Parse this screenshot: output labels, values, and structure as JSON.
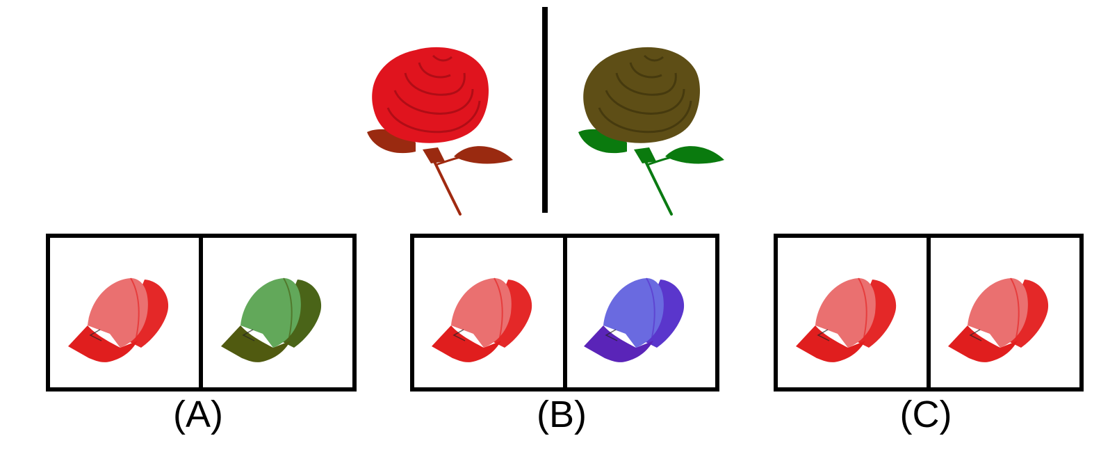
{
  "example": {
    "left_image": {
      "icon": "rose-icon",
      "petal_color": "#e0141e",
      "petal_shade": "#b00d16",
      "leaf_color": "#9a2a10",
      "stem_color": "#a02a10"
    },
    "right_image": {
      "icon": "rose-icon",
      "petal_color": "#5e4e16",
      "petal_shade": "#463a0e",
      "leaf_color": "#0a7a0e",
      "stem_color": "#0a7a12"
    }
  },
  "options": [
    {
      "label": "(A)",
      "left_cap": {
        "icon": "baseball-cap-icon",
        "crown_color": "#e42828",
        "panel_color": "#ea7070",
        "brim_color": "#e01e1e"
      },
      "right_cap": {
        "icon": "baseball-cap-icon",
        "crown_color": "#4a6418",
        "panel_color": "#62a85a",
        "brim_color": "#505a10"
      }
    },
    {
      "label": "(B)",
      "left_cap": {
        "icon": "baseball-cap-icon",
        "crown_color": "#e42828",
        "panel_color": "#ea7070",
        "brim_color": "#e01e1e"
      },
      "right_cap": {
        "icon": "baseball-cap-icon",
        "crown_color": "#5a36cc",
        "panel_color": "#6a6ae0",
        "brim_color": "#5a24b8"
      }
    },
    {
      "label": "(C)",
      "left_cap": {
        "icon": "baseball-cap-icon",
        "crown_color": "#e42828",
        "panel_color": "#ea7070",
        "brim_color": "#e01e1e"
      },
      "right_cap": {
        "icon": "baseball-cap-icon",
        "crown_color": "#e42828",
        "panel_color": "#ea7070",
        "brim_color": "#e01e1e"
      }
    }
  ]
}
